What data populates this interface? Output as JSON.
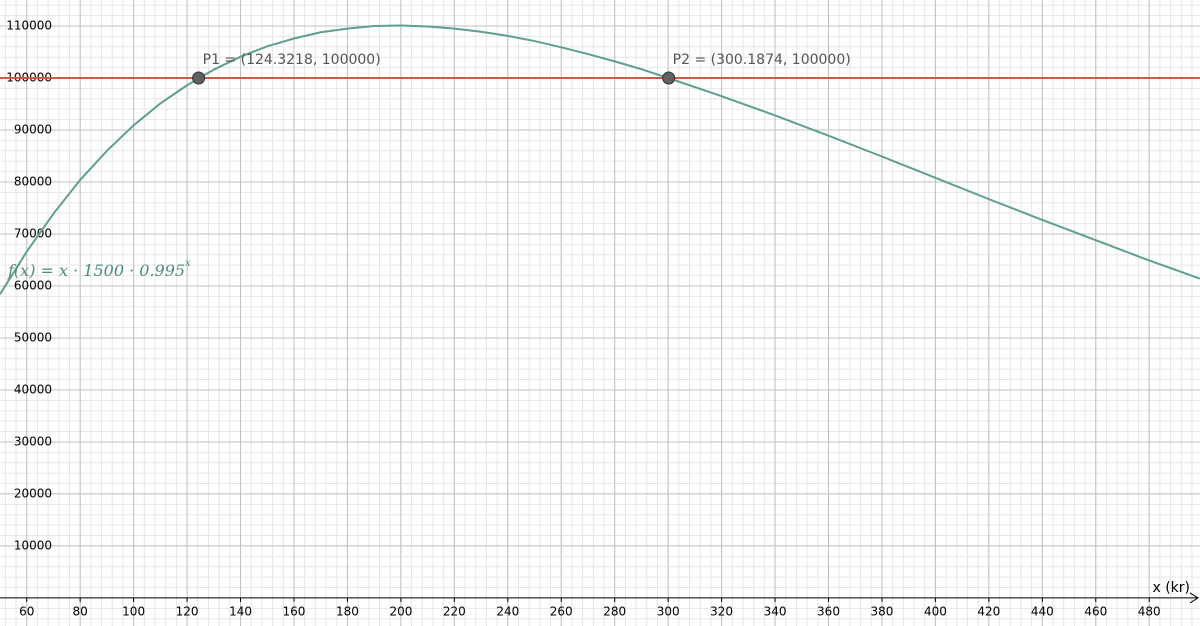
{
  "chart_data": {
    "type": "line",
    "x": [
      50,
      60,
      70,
      80,
      90,
      100,
      110,
      120,
      130,
      140,
      150,
      160,
      170,
      180,
      190,
      200,
      210,
      220,
      230,
      240,
      250,
      260,
      270,
      280,
      290,
      300,
      320,
      340,
      360,
      380,
      400,
      420,
      440,
      460,
      480,
      499
    ],
    "values": [
      58400,
      66600,
      73900,
      80400,
      86000,
      90900,
      95100,
      98600,
      101600,
      104100,
      106100,
      107600,
      108800,
      109500,
      110000,
      110100,
      109900,
      109500,
      108900,
      108100,
      107100,
      105900,
      104600,
      103200,
      101700,
      100000,
      96500,
      92800,
      88900,
      84900,
      80800,
      76700,
      72700,
      68800,
      64900,
      61400
    ],
    "color": "#5e9f91",
    "function_label": {
      "text": "f(x)  =  x · 1500 · 0.995",
      "exponent": "x"
    },
    "hline": {
      "value": 100000,
      "color": "#cf5a48"
    },
    "points": [
      {
        "label": "P1 = (124.3218, 100000)",
        "x": 124.3218,
        "y": 100000
      },
      {
        "label": "P2 = (300.1874, 100000)",
        "x": 300.1874,
        "y": 100000
      }
    ],
    "point_color": "#616161",
    "xlabel": "x (kr)",
    "xlim": [
      50,
      499
    ],
    "ylim": [
      -5400,
      115000
    ],
    "xticks": [
      60,
      80,
      100,
      120,
      140,
      160,
      180,
      200,
      220,
      240,
      260,
      280,
      300,
      320,
      340,
      360,
      380,
      400,
      420,
      440,
      460,
      480
    ],
    "yticks": [
      10000,
      20000,
      30000,
      40000,
      50000,
      60000,
      70000,
      80000,
      90000,
      100000,
      110000
    ],
    "grid": true,
    "minor_grid": true
  }
}
